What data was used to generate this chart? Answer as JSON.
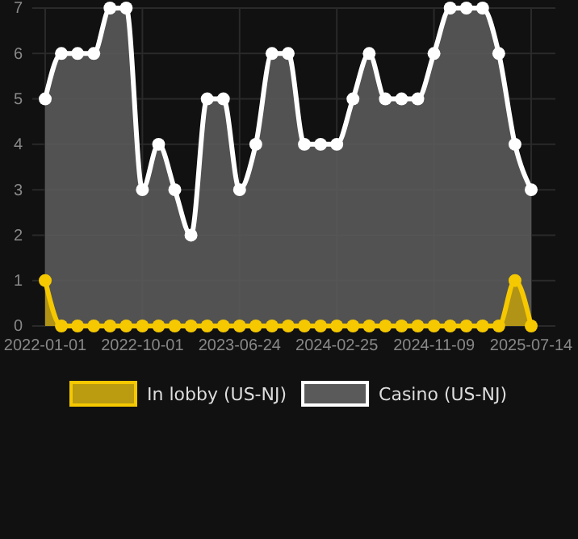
{
  "chart_data": {
    "type": "area",
    "categories": [
      "2022-01-01",
      null,
      null,
      null,
      null,
      null,
      "2022-10-01",
      null,
      null,
      null,
      null,
      null,
      "2023-06-24",
      null,
      null,
      null,
      null,
      null,
      "2024-02-25",
      null,
      null,
      null,
      null,
      null,
      "2024-11-09",
      null,
      null,
      null,
      null,
      null,
      "2025-07-14"
    ],
    "series": [
      {
        "name": "In lobby (US-NJ)",
        "color": "#f5c800",
        "values": [
          1,
          0,
          0,
          0,
          0,
          0,
          0,
          0,
          0,
          0,
          0,
          0,
          0,
          0,
          0,
          0,
          0,
          0,
          0,
          0,
          0,
          0,
          0,
          0,
          0,
          0,
          0,
          0,
          0,
          1,
          0
        ]
      },
      {
        "name": "Casino (US-NJ)",
        "color": "#ffffff",
        "values": [
          5,
          6,
          6,
          6,
          7,
          7,
          3,
          4,
          3,
          2,
          5,
          5,
          3,
          4,
          6,
          6,
          4,
          4,
          4,
          5,
          6,
          5,
          5,
          5,
          6,
          7,
          7,
          7,
          6,
          4,
          3
        ]
      }
    ],
    "ylim": [
      0,
      7
    ],
    "yticks": [
      0,
      1,
      2,
      3,
      4,
      5,
      6,
      7
    ],
    "grid": true,
    "legend": "bottom",
    "marker": "circle",
    "line_style": "solid"
  }
}
